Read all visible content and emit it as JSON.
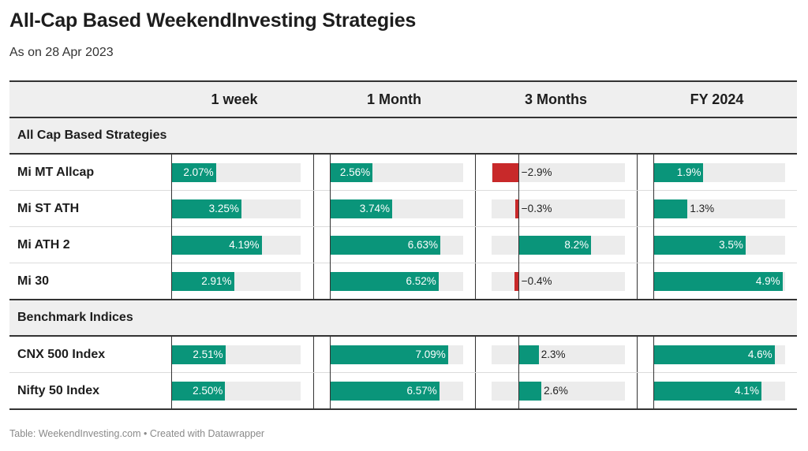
{
  "title": "All-Cap Based WeekendInvesting Strategies",
  "subtitle": "As on 28 Apr 2023",
  "footer": "Table: WeekendInvesting.com • Created with Datawrapper",
  "colors": {
    "positive": "#0a957a",
    "negative": "#c8292a",
    "track": "#ececec"
  },
  "chart_data": {
    "type": "table",
    "columns": [
      "1 week",
      "1 Month",
      "3 Months",
      "FY 2024"
    ],
    "scales": [
      {
        "min": 0,
        "max": 6
      },
      {
        "min": 0,
        "max": 8
      },
      {
        "min": -3,
        "max": 12
      },
      {
        "min": 0,
        "max": 5
      }
    ],
    "groups": [
      {
        "name": "All Cap Based Strategies",
        "rows": [
          {
            "name": "Mi MT Allcap",
            "values": [
              2.07,
              2.56,
              -2.9,
              1.9
            ],
            "labels": [
              "2.07%",
              "2.56%",
              "−2.9%",
              "1.9%"
            ]
          },
          {
            "name": "Mi ST ATH",
            "values": [
              3.25,
              3.74,
              -0.3,
              1.3
            ],
            "labels": [
              "3.25%",
              "3.74%",
              "−0.3%",
              "1.3%"
            ]
          },
          {
            "name": "Mi ATH 2",
            "values": [
              4.19,
              6.63,
              8.2,
              3.5
            ],
            "labels": [
              "4.19%",
              "6.63%",
              "8.2%",
              "3.5%"
            ]
          },
          {
            "name": "Mi 30",
            "values": [
              2.91,
              6.52,
              -0.4,
              4.9
            ],
            "labels": [
              "2.91%",
              "6.52%",
              "−0.4%",
              "4.9%"
            ]
          }
        ]
      },
      {
        "name": "Benchmark Indices",
        "rows": [
          {
            "name": "CNX 500 Index",
            "values": [
              2.51,
              7.09,
              2.3,
              4.6
            ],
            "labels": [
              "2.51%",
              "7.09%",
              "2.3%",
              "4.6%"
            ]
          },
          {
            "name": "Nifty 50 Index",
            "values": [
              2.5,
              6.57,
              2.6,
              4.1
            ],
            "labels": [
              "2.50%",
              "6.57%",
              "2.6%",
              "4.1%"
            ]
          }
        ]
      }
    ]
  }
}
